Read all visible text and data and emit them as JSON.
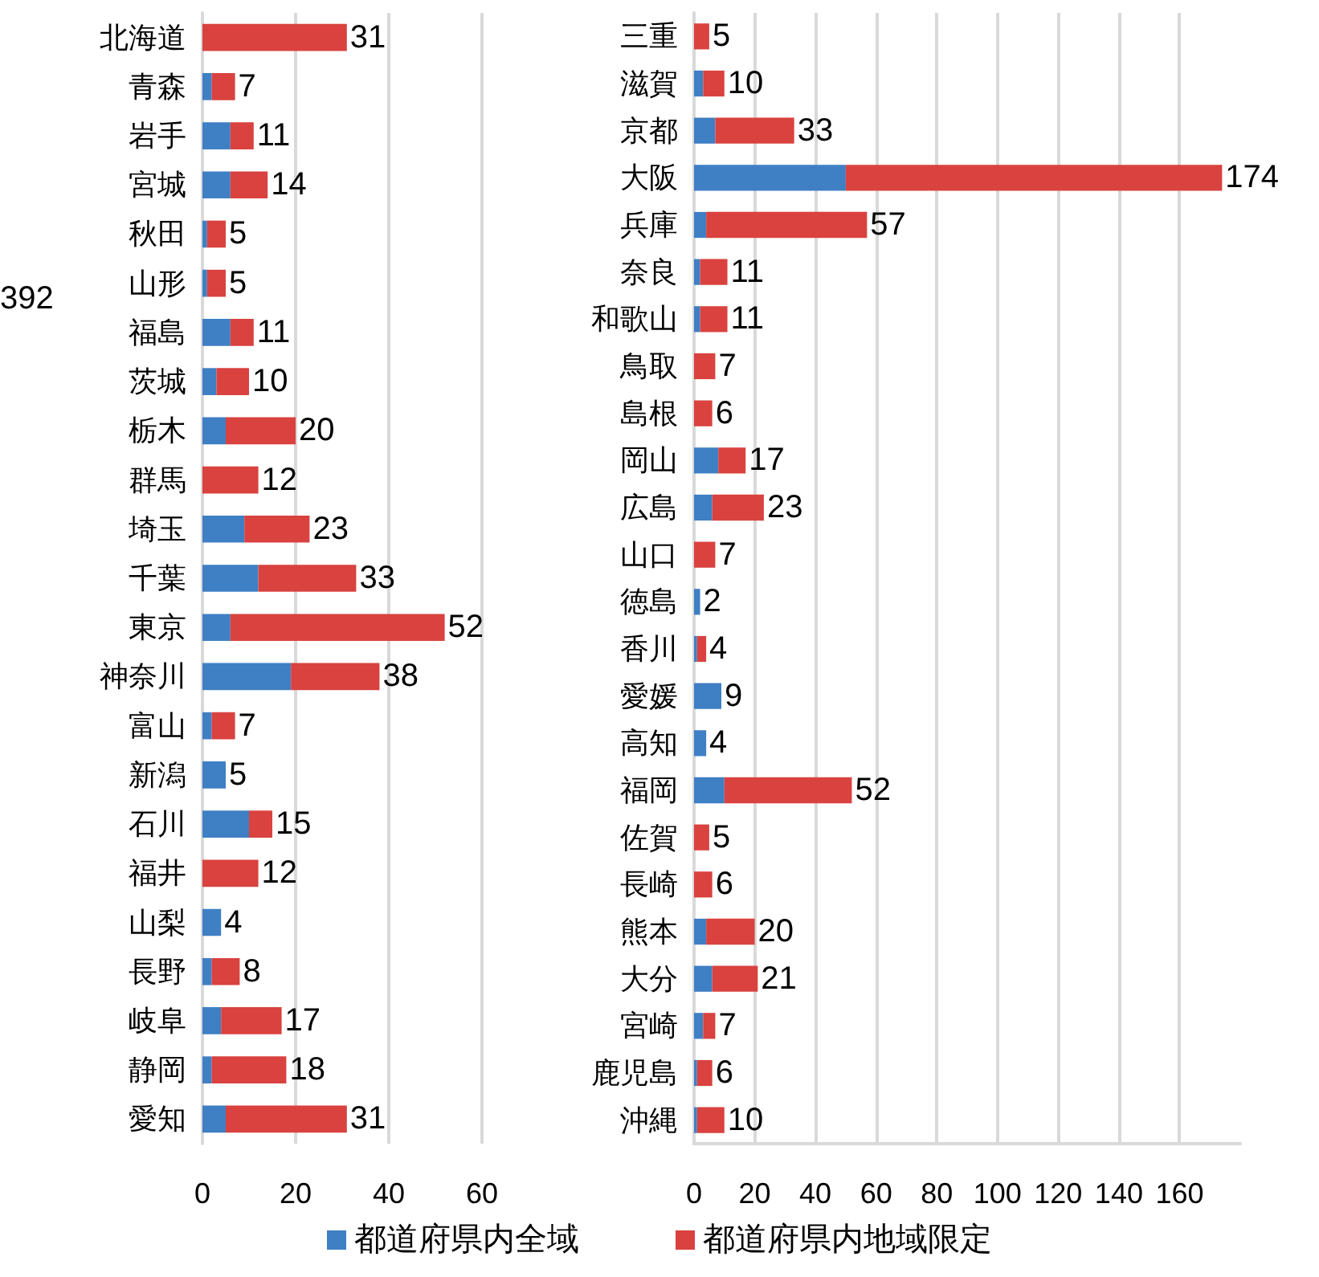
{
  "chart_data": [
    {
      "type": "bar",
      "orientation": "horizontal",
      "stacked": true,
      "grid": "x",
      "legend": "bottom",
      "categories": [
        "北海道",
        "青森",
        "岩手",
        "宮城",
        "秋田",
        "山形",
        "福島",
        "茨城",
        "栃木",
        "群馬",
        "埼玉",
        "千葉",
        "東京",
        "神奈川",
        "富山",
        "新潟",
        "石川",
        "福井",
        "山梨",
        "長野",
        "岐阜",
        "静岡",
        "愛知"
      ],
      "series": [
        {
          "name": "都道府県内全域",
          "color": "#3f7fc4",
          "values": [
            0,
            2,
            6,
            6,
            1,
            1,
            6,
            3,
            5,
            0,
            9,
            12,
            6,
            19,
            2,
            5,
            10,
            0,
            4,
            2,
            4,
            2,
            5
          ]
        },
        {
          "name": "都道府県内地域限定",
          "color": "#d9423f",
          "values": [
            31,
            5,
            5,
            8,
            4,
            4,
            5,
            7,
            15,
            12,
            14,
            21,
            46,
            19,
            5,
            0,
            5,
            12,
            0,
            6,
            13,
            16,
            26
          ]
        }
      ],
      "totals": [
        "31",
        "7",
        "11",
        "14",
        "5",
        "5",
        "11",
        "10",
        "20",
        "12",
        "23",
        "33",
        "52",
        "38",
        "7",
        "5",
        "15",
        "12",
        "4",
        "8",
        "17",
        "18",
        "31"
      ],
      "xlim": [
        0,
        60
      ],
      "xticks": [
        0,
        20,
        40,
        60
      ],
      "annotations": [
        "392"
      ]
    },
    {
      "type": "bar",
      "orientation": "horizontal",
      "stacked": true,
      "grid": "x",
      "categories": [
        "三重",
        "滋賀",
        "京都",
        "大阪",
        "兵庫",
        "奈良",
        "和歌山",
        "鳥取",
        "島根",
        "岡山",
        "広島",
        "山口",
        "徳島",
        "香川",
        "愛媛",
        "高知",
        "福岡",
        "佐賀",
        "長崎",
        "熊本",
        "大分",
        "宮崎",
        "鹿児島",
        "沖縄"
      ],
      "series": [
        {
          "color": "#3f7fc4",
          "values": [
            0,
            3,
            7,
            50,
            4,
            2,
            2,
            0,
            0,
            8,
            6,
            0,
            2,
            1,
            9,
            4,
            10,
            0,
            0,
            4,
            6,
            3,
            1,
            1
          ]
        },
        {
          "color": "#d9423f",
          "values": [
            5,
            7,
            26,
            124,
            53,
            9,
            9,
            7,
            6,
            9,
            17,
            7,
            0,
            3,
            0,
            0,
            42,
            5,
            6,
            16,
            15,
            4,
            5,
            9
          ]
        }
      ],
      "totals": [
        "5",
        "10",
        "33",
        "174",
        "57",
        "11",
        "11",
        "7",
        "6",
        "17",
        "23",
        "7",
        "2",
        "4",
        "9",
        "4",
        "52",
        "5",
        "6",
        "20",
        "21",
        "7",
        "6",
        "10"
      ],
      "xlim": [
        0,
        180
      ],
      "xticks": [
        0,
        20,
        40,
        60,
        80,
        100,
        120,
        140,
        160
      ]
    }
  ]
}
